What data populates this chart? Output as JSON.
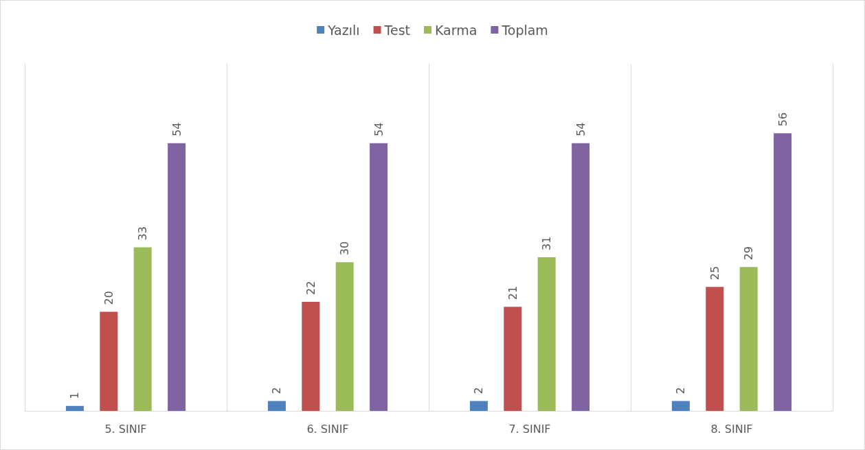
{
  "chart_data": {
    "type": "bar",
    "categories": [
      "5. SINIF",
      "6. SINIF",
      "7. SINIF",
      "8. SINIF"
    ],
    "series": [
      {
        "name": "Yazılı",
        "color": "#4f81bd",
        "values": [
          1,
          2,
          2,
          2
        ]
      },
      {
        "name": "Test",
        "color": "#c0504d",
        "values": [
          20,
          22,
          21,
          25
        ]
      },
      {
        "name": "Karma",
        "color": "#9bbb59",
        "values": [
          33,
          30,
          31,
          29
        ]
      },
      {
        "name": "Toplam",
        "color": "#8064a2",
        "values": [
          54,
          54,
          54,
          56
        ]
      }
    ],
    "data_labels": true,
    "grid": "x",
    "legend": "top"
  }
}
